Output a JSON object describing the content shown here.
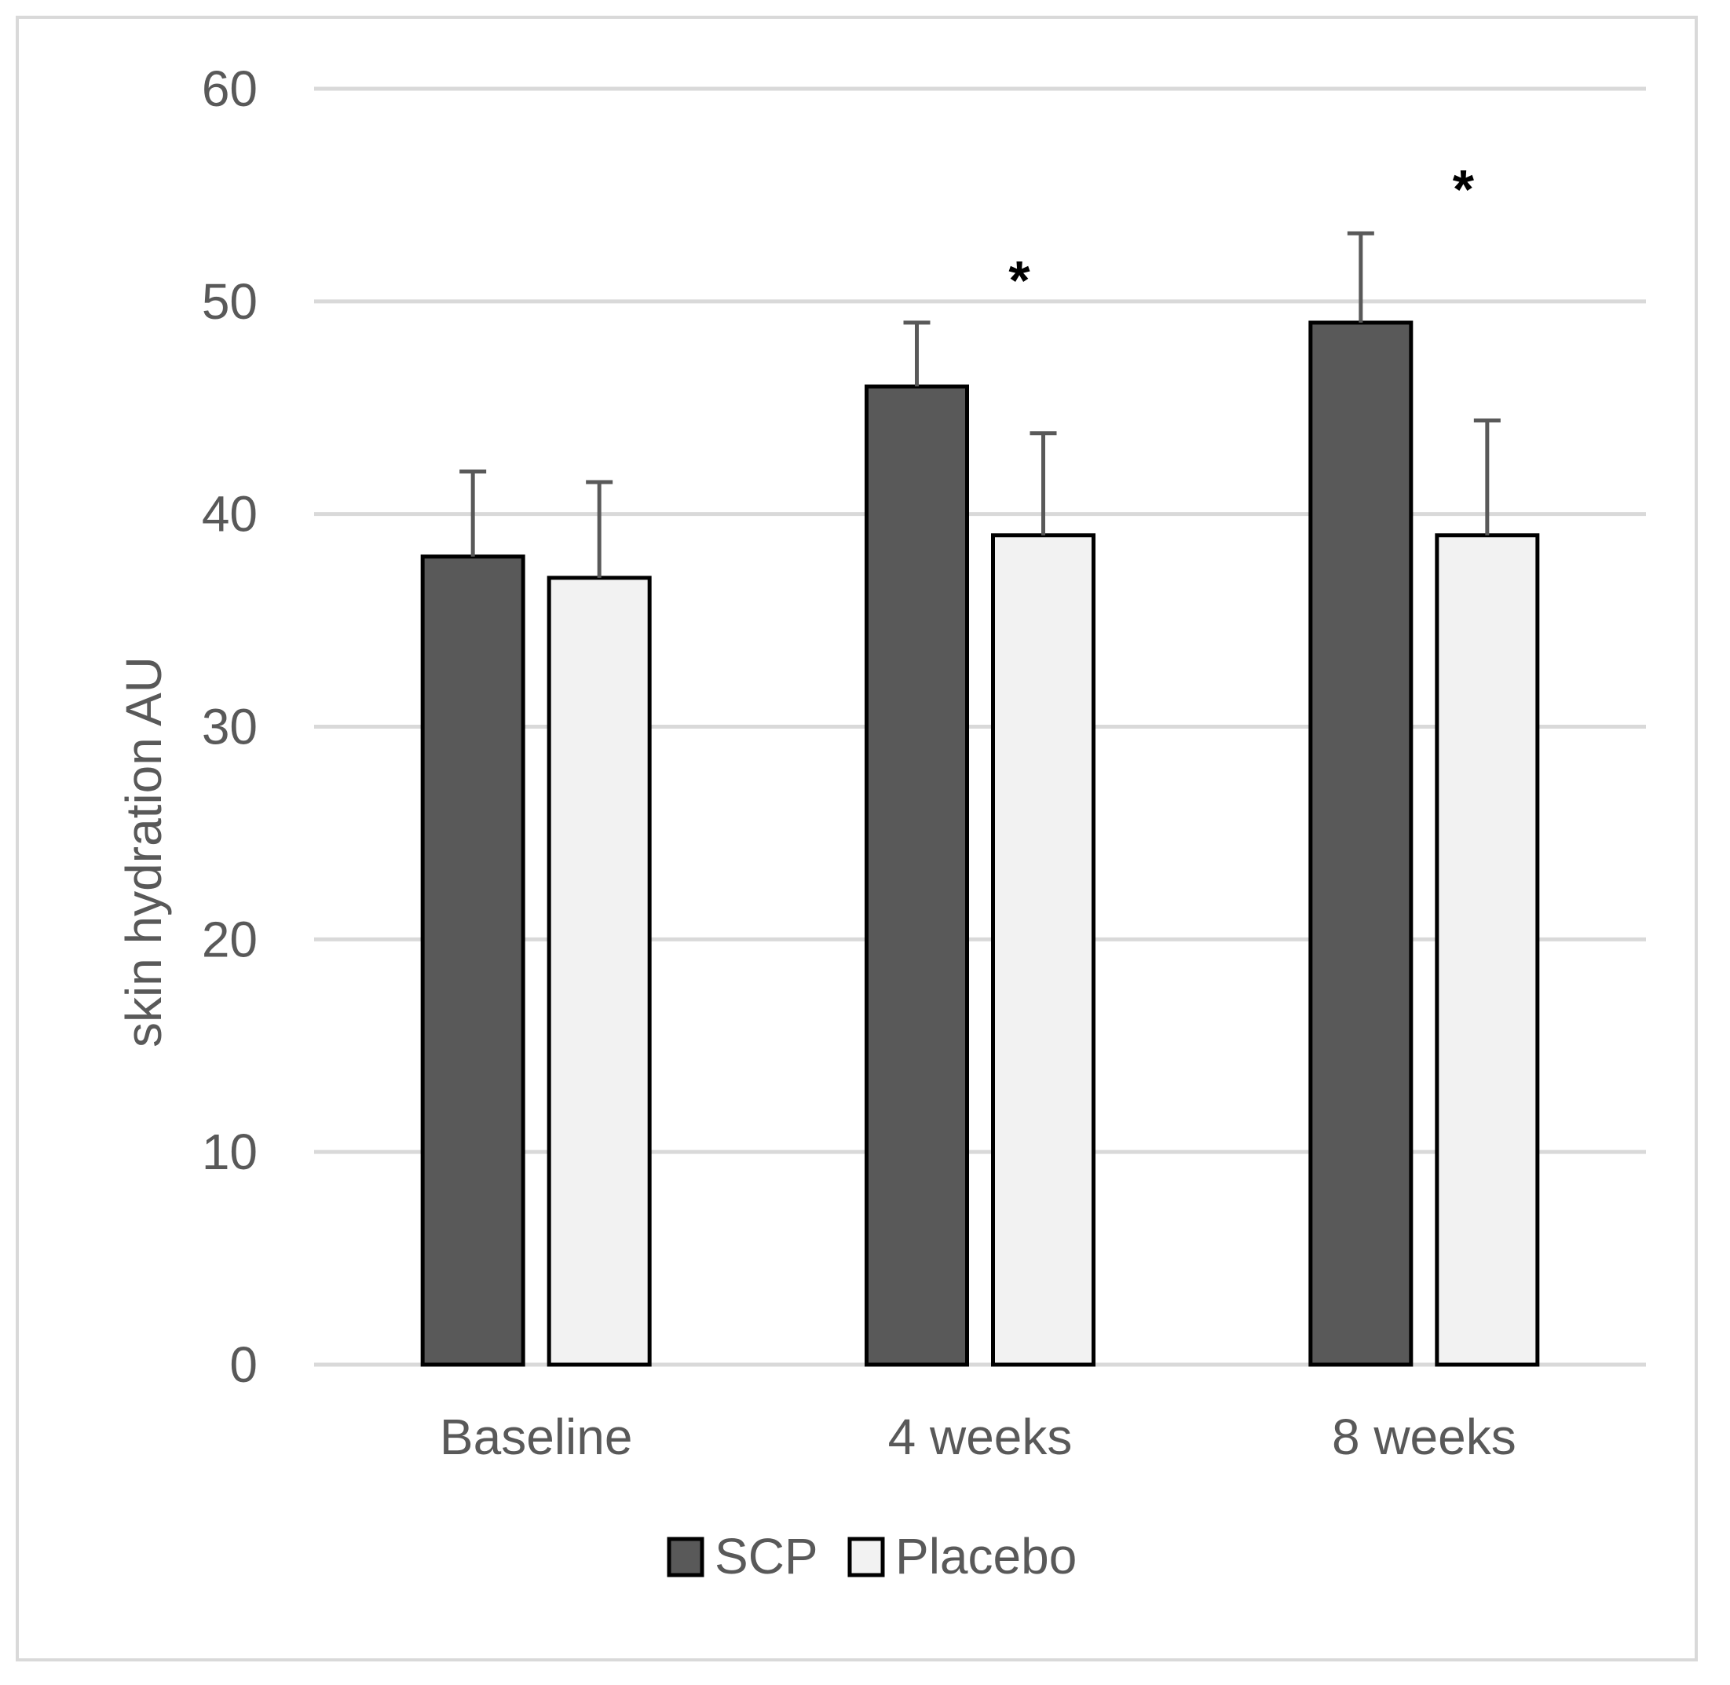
{
  "chart_data": {
    "type": "bar",
    "categories": [
      "Baseline",
      "4 weeks",
      "8 weeks"
    ],
    "series": [
      {
        "name": "SCP",
        "values": [
          38,
          46,
          49
        ],
        "errors": [
          4,
          3,
          4.2
        ],
        "color": "#595959"
      },
      {
        "name": "Placebo",
        "values": [
          37,
          39,
          39
        ],
        "errors": [
          4.5,
          4.8,
          5.4
        ],
        "color": "#f2f2f2"
      }
    ],
    "ylabel": "skin hydration AU",
    "xlabel": "",
    "ylim": [
      0,
      60
    ],
    "yticks": [
      0,
      10,
      20,
      30,
      40,
      50,
      60
    ],
    "grid": true,
    "legend_position": "bottom",
    "annotations": [
      {
        "category": "4 weeks",
        "text": "*",
        "y": 51.5
      },
      {
        "category": "8 weeks",
        "text": "*",
        "y": 55.8
      }
    ],
    "colors": {
      "outline": "#000000",
      "grid": "#d9d9d9",
      "error_bar": "#595959"
    }
  }
}
